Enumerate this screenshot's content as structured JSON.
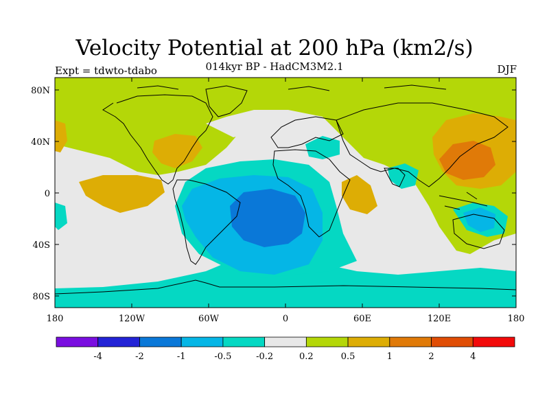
{
  "header": {
    "title": "Velocity Potential at 200 hPa (km2/s)",
    "subtitle": "014kyr BP - HadCM3M2.1",
    "experiment": "Expt = tdwto-tdabo",
    "season": "DJF"
  },
  "axes": {
    "lat_ticks": [
      "80N",
      "40N",
      "0",
      "40S",
      "80S"
    ],
    "lon_ticks": [
      "180",
      "120W",
      "60W",
      "0",
      "60E",
      "120E",
      "180"
    ]
  },
  "colorbar": {
    "colors": [
      "#7a0ee0",
      "#2323d6",
      "#0a78d8",
      "#05b6e6",
      "#05d8c3",
      "#e8e8e8",
      "#b4d708",
      "#ddad05",
      "#e07a08",
      "#e04d05",
      "#f20a0a"
    ],
    "labels": [
      "-4",
      "-2",
      "-1",
      "-0.5",
      "-0.2",
      "0.2",
      "0.5",
      "1",
      "2",
      "4"
    ]
  },
  "map_fields": {
    "background_class": "0.2 to 0.5",
    "regions": [
      {
        "name": "southern-ocean-band",
        "class": "-0.5 to -0.2"
      },
      {
        "name": "south-atlantic-low",
        "class": "-1 to -0.5"
      },
      {
        "name": "south-atlantic-core",
        "class": "-2 to -1"
      },
      {
        "name": "north-pacific-high",
        "class": "0.5 to 1"
      },
      {
        "name": "north-pacific-core",
        "class": "1 to 2"
      },
      {
        "name": "eastern-pacific-high",
        "class": "0.5 to 1"
      },
      {
        "name": "east-africa-high",
        "class": "0.5 to 1"
      },
      {
        "name": "north-america-high",
        "class": "0.5 to 1"
      },
      {
        "name": "maritime-continent-low",
        "class": "-0.5 to -0.2"
      }
    ]
  }
}
